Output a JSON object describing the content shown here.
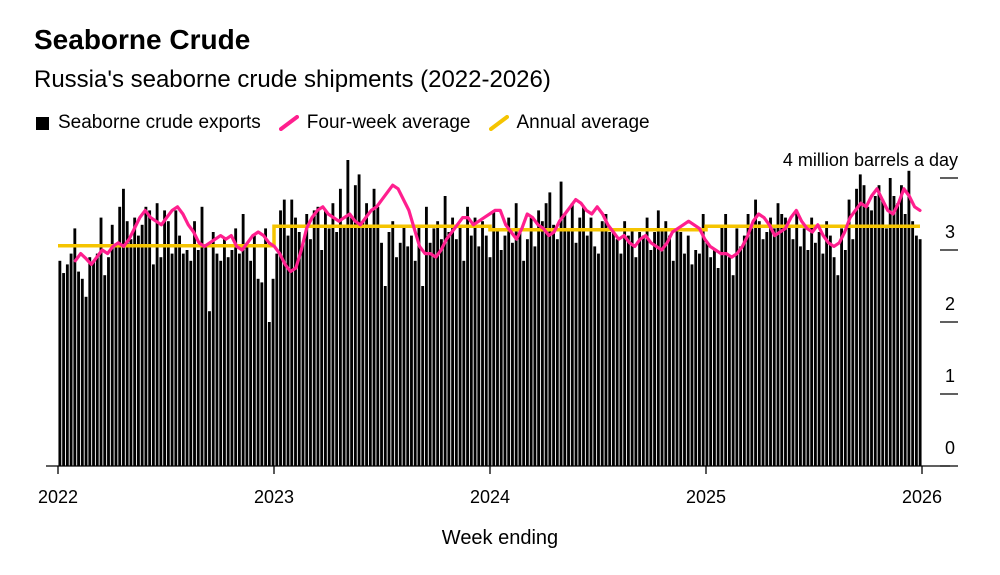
{
  "title": "Seaborne Crude",
  "subtitle": "Russia's seaborne crude shipments (2022-2026)",
  "legend": {
    "exports": "Seaborne crude exports",
    "four_week": "Four-week average",
    "annual": "Annual average"
  },
  "colors": {
    "bars": "#000000",
    "four_week": "#ff1f8e",
    "annual": "#f5c400",
    "axis": "#000000"
  },
  "chart_data": {
    "type": "bar",
    "title": "Seaborne Crude",
    "subtitle": "Russia's seaborne crude shipments (2022-2026)",
    "xlabel": "Week ending",
    "ylabel": "million barrels a day",
    "unit_label": "4 million barrels a day",
    "ylim": [
      0,
      4
    ],
    "y_ticks": [
      0,
      1,
      2,
      3,
      4
    ],
    "y_tick_labels": [
      "0",
      "1",
      "2",
      "3",
      ""
    ],
    "x_ticks": [
      "2022",
      "2023",
      "2024",
      "2025",
      "2026"
    ],
    "x_range": [
      2022.0,
      2026.0
    ],
    "series": [
      {
        "name": "Seaborne crude exports",
        "type": "bar",
        "start": 2022.0,
        "step_weeks": 1,
        "values": [
          2.85,
          2.68,
          2.8,
          2.95,
          3.3,
          2.7,
          2.6,
          2.35,
          2.9,
          2.85,
          2.95,
          3.45,
          2.65,
          2.9,
          3.35,
          3.05,
          3.6,
          3.85,
          3.4,
          3.15,
          3.45,
          3.2,
          3.35,
          3.6,
          3.55,
          2.8,
          3.65,
          2.9,
          3.55,
          3.4,
          2.95,
          3.55,
          3.2,
          2.95,
          3.0,
          2.85,
          3.4,
          3.0,
          3.6,
          3.05,
          2.15,
          3.25,
          2.95,
          2.85,
          3.15,
          2.9,
          3.0,
          3.3,
          2.95,
          3.5,
          3.05,
          2.85,
          3.2,
          2.6,
          2.55,
          3.3,
          2.0,
          2.6,
          2.95,
          3.55,
          3.7,
          3.2,
          3.7,
          3.45,
          3.25,
          3.1,
          3.5,
          3.15,
          3.55,
          3.6,
          3.0,
          3.55,
          3.3,
          3.65,
          3.25,
          3.85,
          3.35,
          4.25,
          3.45,
          3.9,
          4.05,
          3.4,
          3.65,
          3.35,
          3.85,
          3.6,
          3.1,
          2.5,
          3.25,
          3.4,
          2.9,
          3.1,
          3.35,
          3.05,
          3.2,
          2.85,
          3.35,
          2.5,
          3.6,
          3.1,
          3.3,
          3.4,
          3.15,
          3.75,
          3.25,
          3.45,
          3.15,
          3.35,
          2.85,
          3.6,
          3.2,
          3.45,
          3.05,
          3.4,
          3.2,
          2.9,
          3.55,
          3.3,
          3.0,
          3.2,
          3.45,
          3.1,
          3.65,
          3.3,
          2.85,
          3.15,
          3.45,
          3.05,
          3.55,
          3.4,
          3.65,
          3.8,
          3.35,
          3.15,
          3.95,
          3.5,
          3.3,
          3.65,
          3.1,
          3.45,
          3.6,
          3.2,
          3.45,
          3.05,
          2.95,
          3.4,
          3.5,
          3.25,
          3.3,
          3.15,
          2.95,
          3.4,
          3.2,
          3.3,
          2.9,
          3.25,
          3.2,
          3.45,
          3.0,
          3.25,
          3.55,
          3.3,
          3.4,
          3.2,
          2.85,
          3.3,
          3.25,
          2.95,
          3.2,
          2.8,
          3.0,
          2.95,
          3.5,
          3.1,
          2.9,
          3.0,
          2.75,
          3.35,
          3.5,
          2.9,
          2.65,
          3.3,
          3.05,
          3.2,
          3.5,
          3.3,
          3.7,
          3.4,
          3.15,
          3.25,
          3.45,
          3.3,
          3.65,
          3.5,
          3.45,
          3.35,
          3.15,
          3.55,
          3.05,
          3.3,
          3.0,
          3.45,
          3.1,
          3.25,
          2.95,
          3.4,
          3.2,
          2.9,
          2.65,
          3.3,
          3.0,
          3.7,
          3.15,
          3.85,
          4.05,
          3.9,
          3.6,
          3.55,
          3.75,
          3.9,
          3.7,
          3.3,
          4.0,
          3.75,
          3.65,
          3.9,
          3.5,
          4.1,
          3.4,
          3.2,
          3.15
        ]
      },
      {
        "name": "Four-week average",
        "type": "line",
        "start": 2022.08,
        "values": [
          2.85,
          2.95,
          2.88,
          2.8,
          2.9,
          3.0,
          2.95,
          3.05,
          3.1,
          3.05,
          3.15,
          3.3,
          3.45,
          3.55,
          3.45,
          3.4,
          3.35,
          3.45,
          3.55,
          3.6,
          3.5,
          3.35,
          3.25,
          3.1,
          3.05,
          3.1,
          3.15,
          3.2,
          3.15,
          3.2,
          3.05,
          3.0,
          3.1,
          3.2,
          3.25,
          3.2,
          3.1,
          3.05,
          2.95,
          2.8,
          2.7,
          2.75,
          3.0,
          3.3,
          3.45,
          3.55,
          3.6,
          3.5,
          3.45,
          3.4,
          3.45,
          3.5,
          3.4,
          3.35,
          3.45,
          3.55,
          3.6,
          3.7,
          3.8,
          3.9,
          3.85,
          3.7,
          3.55,
          3.3,
          3.05,
          2.95,
          2.95,
          2.9,
          3.0,
          3.15,
          3.25,
          3.35,
          3.45,
          3.45,
          3.35,
          3.4,
          3.45,
          3.5,
          3.55,
          3.55,
          3.35,
          3.25,
          3.15,
          3.3,
          3.5,
          3.45,
          3.35,
          3.3,
          3.2,
          3.25,
          3.4,
          3.5,
          3.6,
          3.7,
          3.65,
          3.55,
          3.5,
          3.6,
          3.5,
          3.35,
          3.25,
          3.15,
          3.2,
          3.1,
          3.05,
          3.15,
          3.2,
          3.1,
          3.05,
          3.0,
          3.1,
          3.25,
          3.3,
          3.35,
          3.4,
          3.35,
          3.3,
          3.15,
          3.05,
          3.0,
          2.95,
          2.95,
          2.9,
          2.95,
          3.05,
          3.2,
          3.4,
          3.5,
          3.45,
          3.35,
          3.2,
          3.25,
          3.3,
          3.45,
          3.55,
          3.4,
          3.3,
          3.25,
          3.35,
          3.2,
          3.1,
          3.05,
          3.1,
          3.25,
          3.45,
          3.55,
          3.65,
          3.6,
          3.75,
          3.85,
          3.7,
          3.55,
          3.5,
          3.65,
          3.85,
          3.75,
          3.6,
          3.55
        ]
      },
      {
        "name": "Annual average",
        "type": "step",
        "segments": [
          {
            "from": 2022.0,
            "to": 2023.0,
            "value": 3.06
          },
          {
            "from": 2023.0,
            "to": 2024.0,
            "value": 3.33
          },
          {
            "from": 2024.0,
            "to": 2025.0,
            "value": 3.28
          },
          {
            "from": 2025.0,
            "to": 2026.05,
            "value": 3.33
          }
        ]
      }
    ]
  }
}
